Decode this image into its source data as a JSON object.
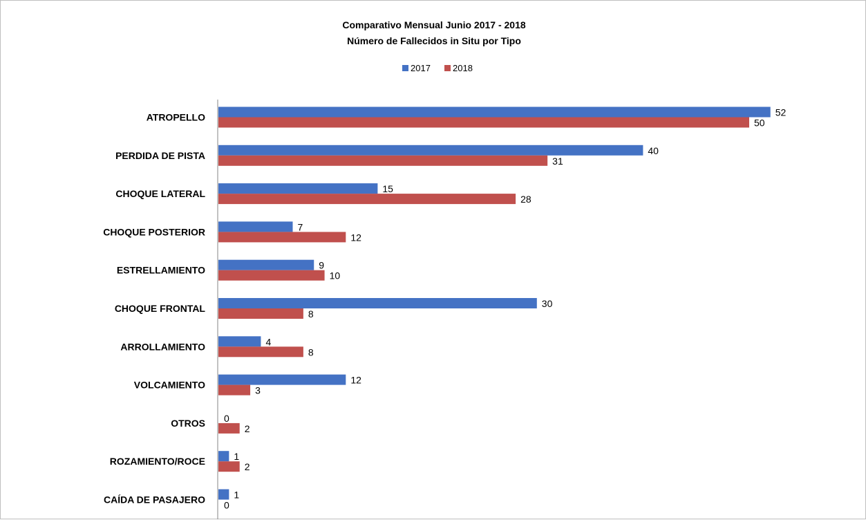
{
  "chart_data": {
    "type": "bar",
    "orientation": "horizontal",
    "title": "Comparativo Mensual Junio 2017 - 2018",
    "subtitle": "Número de Fallecidos in Situ por Tipo",
    "categories": [
      "ATROPELLO",
      "PERDIDA DE PISTA",
      "CHOQUE LATERAL",
      "CHOQUE POSTERIOR",
      "ESTRELLAMIENTO",
      "CHOQUE FRONTAL",
      "ARROLLAMIENTO",
      "VOLCAMIENTO",
      "OTROS",
      "ROZAMIENTO/ROCE",
      "CAÍDA DE PASAJERO"
    ],
    "series": [
      {
        "name": "2017",
        "color": "#4472c4",
        "values": [
          52,
          40,
          15,
          7,
          9,
          30,
          4,
          12,
          0,
          1,
          1
        ]
      },
      {
        "name": "2018",
        "color": "#c0504d",
        "values": [
          50,
          31,
          28,
          12,
          10,
          8,
          8,
          3,
          2,
          2,
          0
        ]
      }
    ],
    "xlim": [
      0,
      52
    ],
    "grid": false,
    "legend_position": "top",
    "data_labels": true
  }
}
